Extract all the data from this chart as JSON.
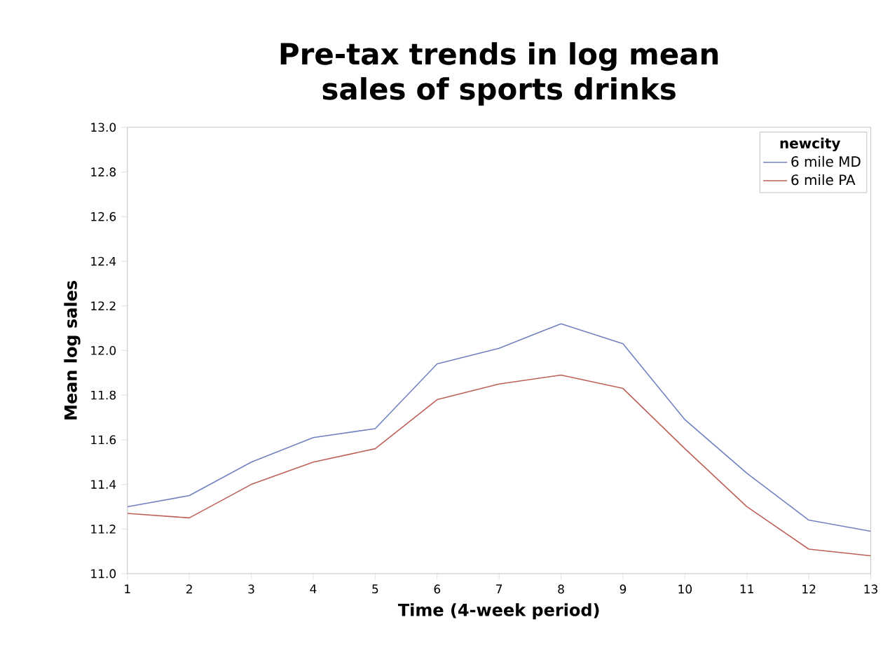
{
  "chart_data": {
    "type": "line",
    "title": "Pre-tax trends in log mean sales of sports drinks",
    "xlabel": "Time (4-week period)",
    "ylabel": "Mean log sales",
    "legend_title": "newcity",
    "x": [
      1,
      2,
      3,
      4,
      5,
      6,
      7,
      8,
      9,
      10,
      11,
      12,
      13
    ],
    "series": [
      {
        "name": "6 mile MD",
        "color": "#7282c0",
        "values": [
          11.3,
          11.35,
          11.5,
          11.61,
          11.65,
          11.94,
          12.01,
          12.12,
          12.03,
          11.69,
          11.45,
          11.24,
          11.19
        ]
      },
      {
        "name": "6 mile PA",
        "color": "#bd6058",
        "values": [
          11.27,
          11.25,
          11.4,
          11.5,
          11.56,
          11.78,
          11.85,
          11.89,
          11.83,
          11.56,
          11.3,
          11.11,
          11.08
        ]
      }
    ],
    "xlim": [
      1,
      13
    ],
    "xticks": [
      1,
      2,
      3,
      4,
      5,
      6,
      7,
      8,
      9,
      10,
      11,
      12,
      13
    ],
    "ylim": [
      11.0,
      13.0
    ],
    "yticks": [
      {
        "value": 11,
        "label": "11.0"
      },
      11.2,
      11.4,
      11.6,
      11.8,
      {
        "value": 12,
        "label": "12.0"
      },
      12.2,
      12.4,
      12.6,
      12.8,
      {
        "value": 13,
        "label": "13.0"
      }
    ],
    "legend": "top right",
    "grid": false,
    "marker": "none",
    "line_style": "solid"
  }
}
